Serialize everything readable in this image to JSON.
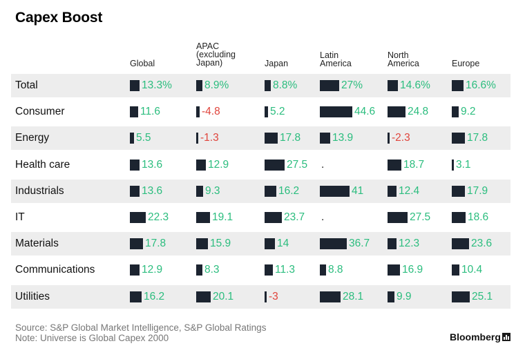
{
  "title": "Capex Boost",
  "chart_data": {
    "type": "table",
    "title": "Capex Boost",
    "columns": [
      "Global",
      "APAC\n(excluding\nJapan)",
      "Japan",
      "Latin\nAmerica",
      "North\nAmerica",
      "Europe"
    ],
    "rows": [
      {
        "label": "Total",
        "values": [
          13.3,
          8.9,
          8.8,
          27,
          14.6,
          16.6
        ],
        "display": [
          "13.3%",
          "8.9%",
          "8.8%",
          "27%",
          "14.6%",
          "16.6%"
        ]
      },
      {
        "label": "Consumer",
        "values": [
          11.6,
          -4.8,
          5.2,
          44.6,
          24.8,
          9.2
        ],
        "display": [
          "11.6",
          "-4.8",
          "5.2",
          "44.6",
          "24.8",
          "9.2"
        ]
      },
      {
        "label": "Energy",
        "values": [
          5.5,
          -1.3,
          17.8,
          13.9,
          -2.3,
          17.8
        ],
        "display": [
          "5.5",
          "-1.3",
          "17.8",
          "13.9",
          "-2.3",
          "17.8"
        ]
      },
      {
        "label": "Health care",
        "values": [
          13.6,
          12.9,
          27.5,
          null,
          18.7,
          3.1
        ],
        "display": [
          "13.6",
          "12.9",
          "27.5",
          ".",
          "18.7",
          "3.1"
        ]
      },
      {
        "label": "Industrials",
        "values": [
          13.6,
          9.3,
          16.2,
          41,
          12.4,
          17.9
        ],
        "display": [
          "13.6",
          "9.3",
          "16.2",
          "41",
          "12.4",
          "17.9"
        ]
      },
      {
        "label": "IT",
        "values": [
          22.3,
          19.1,
          23.7,
          null,
          27.5,
          18.6
        ],
        "display": [
          "22.3",
          "19.1",
          "23.7",
          ".",
          "27.5",
          "18.6"
        ]
      },
      {
        "label": "Materials",
        "values": [
          17.8,
          15.9,
          14,
          36.7,
          12.3,
          23.6
        ],
        "display": [
          "17.8",
          "15.9",
          "14",
          "36.7",
          "12.3",
          "23.6"
        ]
      },
      {
        "label": "Communications",
        "values": [
          12.9,
          8.3,
          11.3,
          8.8,
          16.9,
          10.4
        ],
        "display": [
          "12.9",
          "8.3",
          "11.3",
          "8.8",
          "16.9",
          "10.4"
        ]
      },
      {
        "label": "Utilities",
        "values": [
          16.2,
          20.1,
          -3,
          28.1,
          9.9,
          25.1
        ],
        "display": [
          "16.2",
          "20.1",
          "-3",
          "28.1",
          "9.9",
          "25.1"
        ]
      }
    ],
    "colors": {
      "bar": "#1c2430",
      "positive": "#2bbd7e",
      "negative": "#e0443c",
      "row_shade": "#ededed"
    }
  },
  "footer": {
    "source": "Source: S&P Global Market Intelligence, S&P Global Ratings",
    "note": "Note: Universe is Global Capex 2000"
  },
  "brand": "Bloomberg"
}
